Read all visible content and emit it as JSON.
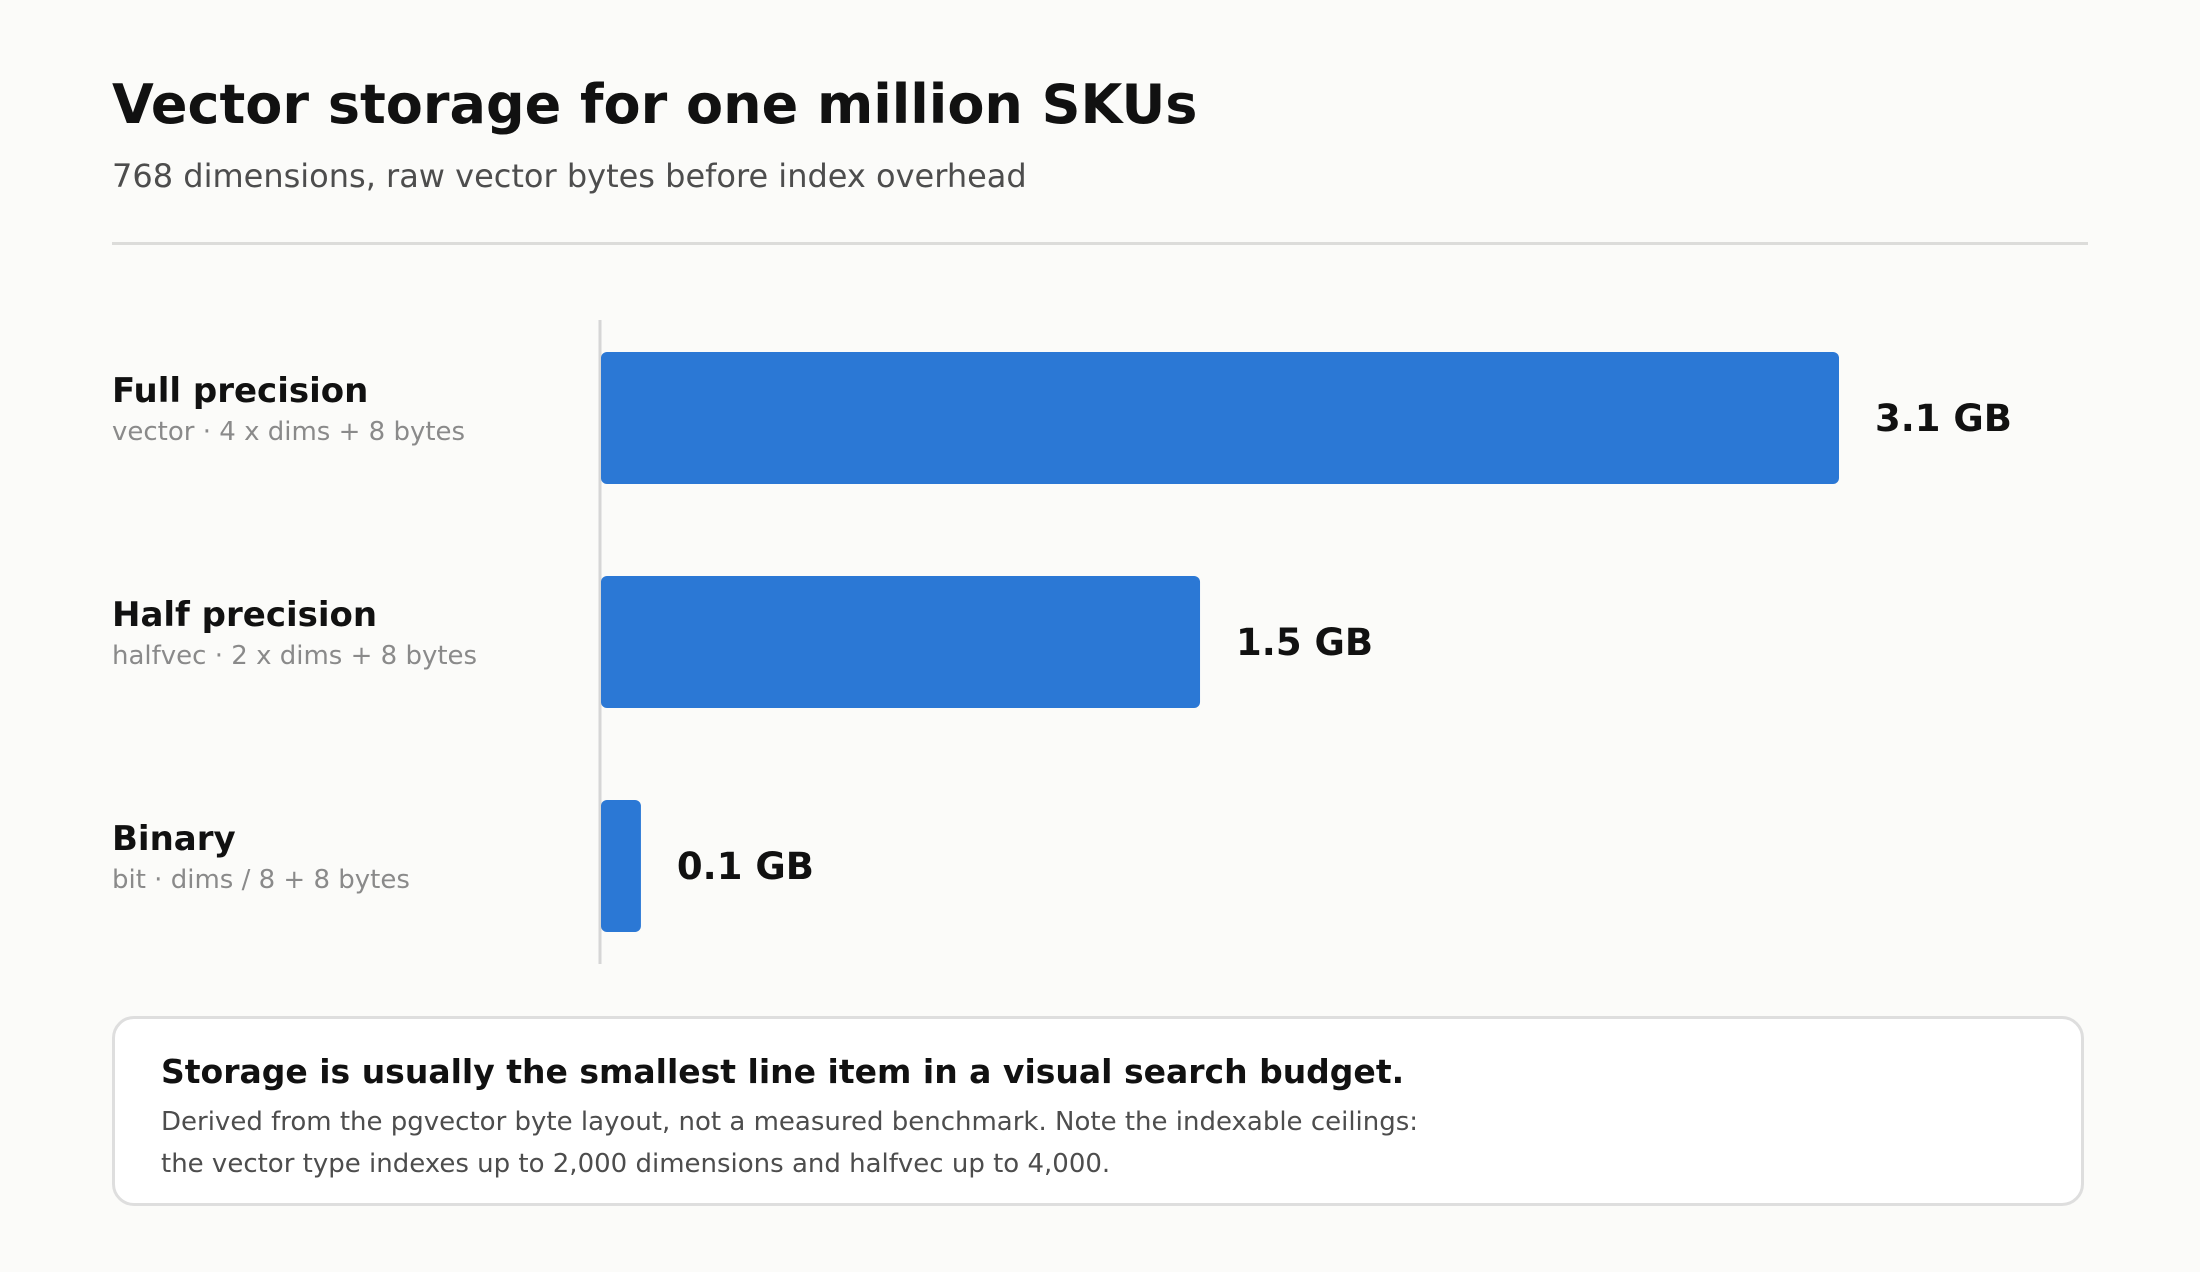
{
  "header": {
    "title": "Vector storage for one million SKUs",
    "subtitle": "768 dimensions, raw vector bytes before index overhead"
  },
  "chart_data": {
    "type": "bar",
    "orientation": "horizontal",
    "categories": [
      "Full precision",
      "Half precision",
      "Binary"
    ],
    "category_details": [
      "vector · 4 x dims + 8 bytes",
      "halfvec · 2 x dims + 8 bytes",
      "bit · dims / 8 + 8 bytes"
    ],
    "values": [
      3.1,
      1.5,
      0.1
    ],
    "value_labels": [
      "3.1 GB",
      "1.5 GB",
      "0.1 GB"
    ],
    "unit": "GB",
    "xlim": [
      0,
      3.1
    ],
    "grid": false,
    "legend": "none",
    "colors": {
      "bar": "#2b78d5",
      "axis": "#d6d6d6"
    }
  },
  "note": {
    "heading": "Storage is usually the smallest line item in a visual search budget.",
    "line1": "Derived from the pgvector byte layout, not a measured benchmark. Note the indexable ceilings:",
    "line2": "the vector type indexes up to 2,000 dimensions and halfvec up to 4,000."
  }
}
